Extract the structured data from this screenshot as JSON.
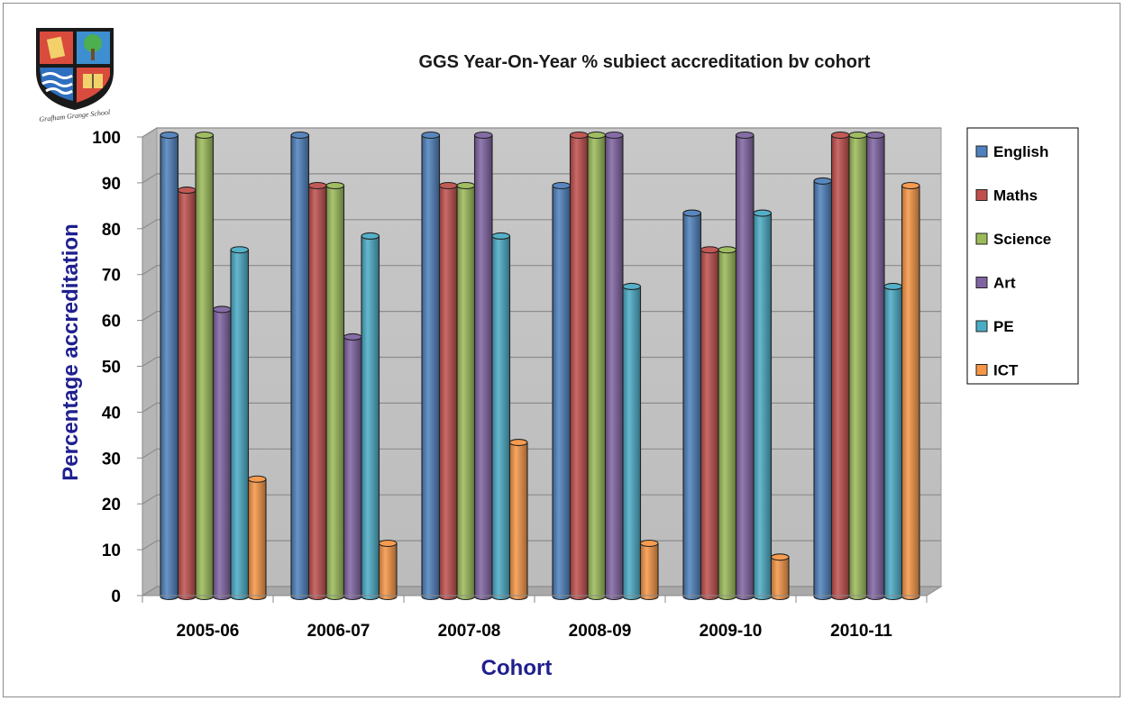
{
  "chart_data": {
    "type": "bar",
    "title": "GGS Year-On-Year % subiect accreditation bv cohort",
    "xlabel": "Cohort",
    "ylabel": "Percentage accreditation",
    "ylim": [
      0,
      100
    ],
    "yticks": [
      0,
      10,
      20,
      30,
      40,
      50,
      60,
      70,
      80,
      90,
      100
    ],
    "categories": [
      "2005-06",
      "2006-07",
      "2007-08",
      "2008-09",
      "2009-10",
      "2010-11"
    ],
    "series": [
      {
        "name": "English",
        "color": "#4f81bd",
        "values": [
          100,
          100,
          100,
          89,
          83,
          90
        ]
      },
      {
        "name": "Maths",
        "color": "#c0504d",
        "values": [
          88,
          89,
          89,
          100,
          75,
          100
        ]
      },
      {
        "name": "Science",
        "color": "#9bbb59",
        "values": [
          100,
          89,
          89,
          100,
          75,
          100
        ]
      },
      {
        "name": "Art",
        "color": "#8064a2",
        "values": [
          62,
          56,
          100,
          100,
          100,
          100
        ]
      },
      {
        "name": "PE",
        "color": "#4bacc6",
        "values": [
          75,
          78,
          78,
          67,
          83,
          67
        ]
      },
      {
        "name": "ICT",
        "color": "#f79646",
        "values": [
          25,
          11,
          33,
          11,
          8,
          89
        ]
      }
    ],
    "legend_position": "right",
    "grid": true,
    "style": "3d-cylinder"
  },
  "logo": {
    "icon": "school-crest-icon",
    "caption": "Grafham Grange School"
  }
}
